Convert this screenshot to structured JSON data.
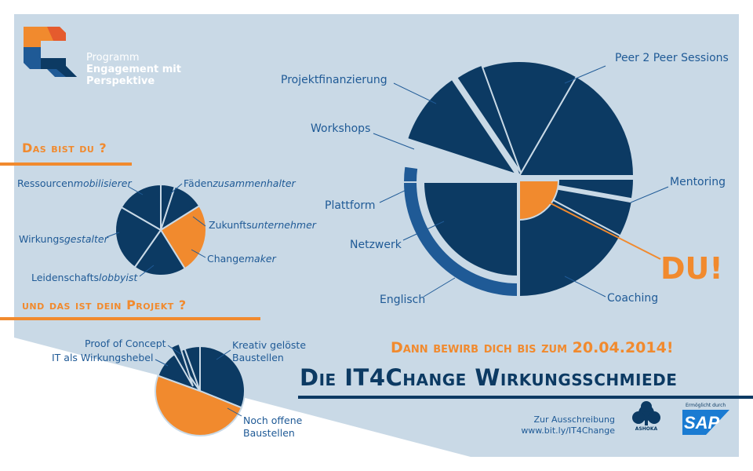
{
  "brand": {
    "line1": "Programm",
    "line2": "Engagement mit",
    "line3": "Perspektive"
  },
  "section1": {
    "heading": "Das bist du ?"
  },
  "pie1": {
    "labels": {
      "ressourcen": {
        "a": "Ressourcen",
        "b": "mobilisierer"
      },
      "faeden": {
        "a": "Fäden",
        "b": "zusammenhalter"
      },
      "zukunft": {
        "a": "Zukunfts",
        "b": "unternehmer"
      },
      "change": {
        "a": "Change",
        "b": "maker"
      },
      "wirkung": {
        "a": "Wirkungs",
        "b": "gestalter"
      },
      "leiden": {
        "a": "Leidenschafts",
        "b": "lobbyist"
      }
    }
  },
  "section2": {
    "heading": "und das ist dein Projekt ?"
  },
  "pie2": {
    "labels": {
      "proof": "Proof of Concept",
      "it": "IT als Wirkungshebel",
      "kreativ1": "Kreativ gelöste",
      "kreativ2": "Baustellen",
      "offen1": "Noch offene",
      "offen2": "Baustellen"
    }
  },
  "bigpie": {
    "labels": {
      "peer": "Peer 2 Peer Sessions",
      "projekt": "Projektfinanzierung",
      "workshops": "Workshops",
      "plattform": "Plattform",
      "mentoring": "Mentoring",
      "netzwerk": "Netzwerk",
      "englisch": "Englisch",
      "coaching": "Coaching"
    },
    "du": "DU!"
  },
  "cta": "Dann bewirb dich bis zum 20.04.2014!",
  "title": "Die IT4Change Wirkungsschmiede",
  "link": {
    "line1": "Zur Ausschreibung",
    "line2": "www.bit.ly/IT4Change"
  },
  "logos": {
    "ashoka": "ASHOKA",
    "sap_caption": "Ermöglicht durch",
    "sap": "SAP"
  },
  "colors": {
    "background": "#c9d9e6",
    "navy": "#0c3a63",
    "blue": "#1f5a96",
    "orange": "#f18a2e"
  }
}
